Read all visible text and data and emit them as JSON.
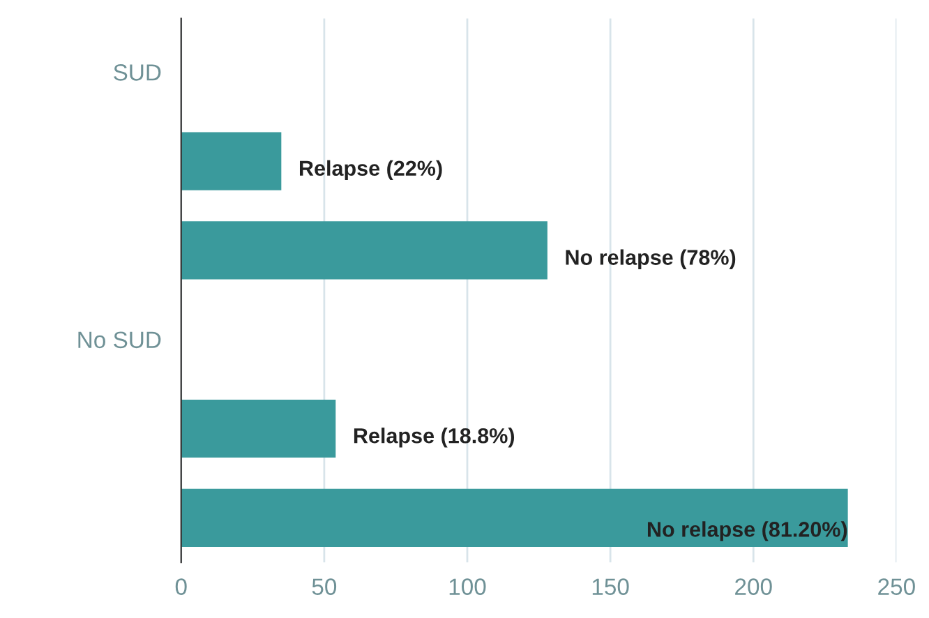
{
  "chart_data": {
    "type": "bar",
    "orientation": "horizontal",
    "categories": [
      "SUD",
      null,
      null,
      "No SUD",
      null,
      null
    ],
    "values": [
      null,
      35,
      128,
      null,
      54,
      233
    ],
    "annotations": [
      "Relapse (22%)",
      "No relapse (78%)",
      "Relapse (18.8%)",
      "No relapse (81.20%)"
    ],
    "color": "#3a9a9c",
    "xlim": [
      0,
      250
    ],
    "xticks": [
      0,
      50,
      100,
      150,
      200,
      250
    ],
    "grid": "x",
    "legend": false
  }
}
